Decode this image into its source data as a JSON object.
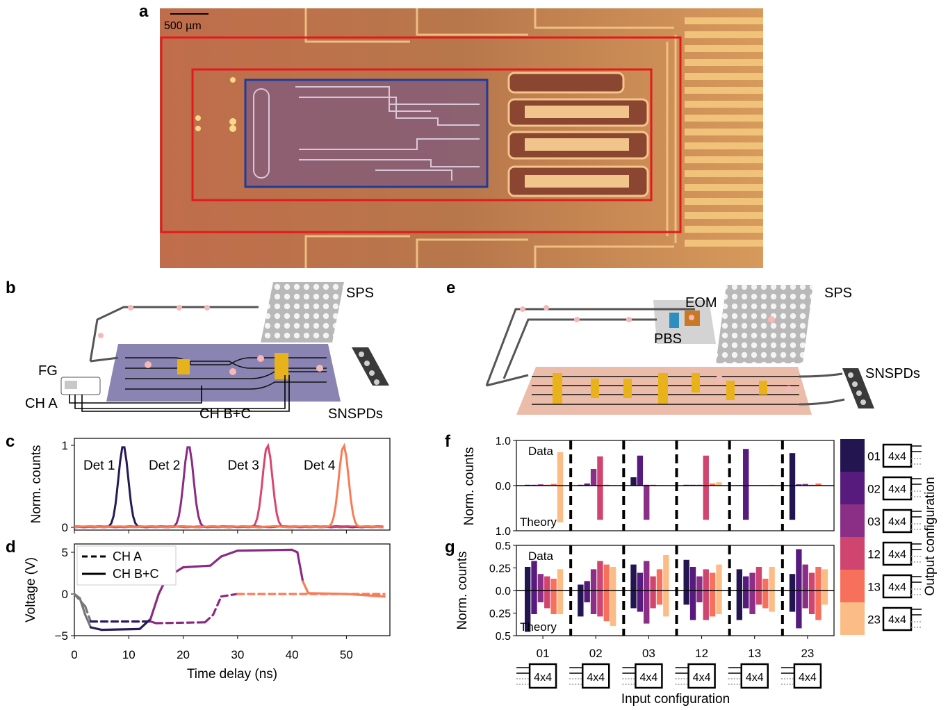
{
  "panels": {
    "a": "a",
    "b": "b",
    "c": "c",
    "d": "d",
    "e": "e",
    "f": "f",
    "g": "g"
  },
  "panel_a": {
    "scalebar": "500 µm"
  },
  "panel_b": {
    "sps": "SPS",
    "fg": "FG",
    "ch_a": "CH A",
    "ch_bc": "CH B+C",
    "snspds": "SNSPDs"
  },
  "panel_e": {
    "eom": "EOM",
    "pbs": "PBS",
    "sps": "SPS",
    "snspds": "SNSPDs"
  },
  "chart_data": [
    {
      "id": "c",
      "type": "line",
      "ylabel": "Norm. counts",
      "ylim": [
        0,
        1
      ],
      "yticks": [
        "1",
        "0"
      ],
      "series": [
        {
          "name": "Det 1",
          "peak_x": 9,
          "peak_y": 1.0,
          "color": "#261a52"
        },
        {
          "name": "Det 2",
          "peak_x": 21,
          "peak_y": 1.0,
          "color": "#8b2a82"
        },
        {
          "name": "Det 3",
          "peak_x": 35.5,
          "peak_y": 1.0,
          "color": "#d9456f"
        },
        {
          "name": "Det 4",
          "peak_x": 49.5,
          "peak_y": 1.0,
          "color": "#f97b56"
        }
      ]
    },
    {
      "id": "d",
      "type": "line",
      "xlabel": "Time delay (ns)",
      "ylabel": "Voltage (V)",
      "xlim": [
        0,
        58
      ],
      "ylim": [
        -5,
        6
      ],
      "xticks": [
        "0",
        "10",
        "20",
        "30",
        "40",
        "50"
      ],
      "yticks": [
        "5",
        "0",
        "−5"
      ],
      "legend": [
        "CH A",
        "CH B+C"
      ],
      "ch_bc": [
        [
          0,
          0
        ],
        [
          1,
          -0.5
        ],
        [
          2,
          -2.5
        ],
        [
          3,
          -4
        ],
        [
          5,
          -4.3
        ],
        [
          12,
          -4.2
        ],
        [
          14,
          -3
        ],
        [
          15.5,
          0
        ],
        [
          17,
          2
        ],
        [
          20,
          3.2
        ],
        [
          25,
          3.4
        ],
        [
          27,
          4.5
        ],
        [
          30,
          5.2
        ],
        [
          40,
          5.3
        ],
        [
          41,
          5
        ],
        [
          42,
          1.5
        ],
        [
          43,
          0.1
        ],
        [
          50,
          0
        ],
        [
          57,
          -0.3
        ]
      ],
      "ch_a": [
        [
          0,
          0
        ],
        [
          2,
          -1.5
        ],
        [
          3,
          -3.3
        ],
        [
          14,
          -3.3
        ],
        [
          15,
          -3.5
        ],
        [
          24,
          -3.4
        ],
        [
          25.5,
          -2.5
        ],
        [
          27,
          -0.3
        ],
        [
          30,
          0
        ],
        [
          57,
          0
        ]
      ]
    },
    {
      "id": "f",
      "type": "bar",
      "ylabel": "Norm. counts",
      "top_label": "Data",
      "bottom_label": "Theory",
      "yticks": [
        "1.0",
        "0.0",
        "1.0"
      ],
      "categories": [
        "01",
        "02",
        "03",
        "12",
        "13",
        "23"
      ],
      "series_names": [
        "01",
        "02",
        "03",
        "12",
        "13",
        "23"
      ],
      "data": [
        [
          0.02,
          0.02,
          0.03,
          0.02,
          0.04,
          0.8
        ],
        [
          0.02,
          0.05,
          0.4,
          0.7,
          0.02,
          0.01
        ],
        [
          0.2,
          0.72,
          0.02,
          0.02,
          0.01,
          0.01
        ],
        [
          0.02,
          0.02,
          0.02,
          0.72,
          0.05,
          0.08
        ],
        [
          0.01,
          0.88,
          0.01,
          0.01,
          0.01,
          0.02
        ],
        [
          0.78,
          0.03,
          0.04,
          0.02,
          0.05,
          0.01
        ]
      ],
      "theory": [
        [
          0,
          0,
          0,
          0,
          0,
          0.88
        ],
        [
          0,
          0,
          0,
          0.82,
          0,
          0
        ],
        [
          0,
          0,
          0.82,
          0,
          0,
          0
        ],
        [
          0,
          0,
          0,
          0.82,
          0,
          0
        ],
        [
          0,
          0.82,
          0,
          0,
          0,
          0
        ],
        [
          0.82,
          0,
          0,
          0,
          0,
          0
        ]
      ]
    },
    {
      "id": "g",
      "type": "bar",
      "xlabel": "Input configuration",
      "ylabel": "Norm. counts",
      "top_label": "Data",
      "bottom_label": "Theory",
      "yticks": [
        "0.5",
        "0.25",
        "0.0",
        "0.25",
        "0.5"
      ],
      "categories": [
        "01",
        "02",
        "03",
        "12",
        "13",
        "23"
      ],
      "data": [
        [
          0.2,
          0.25,
          0.14,
          0.12,
          0.1,
          0.18
        ],
        [
          0.05,
          0.08,
          0.18,
          0.25,
          0.22,
          0.2
        ],
        [
          0.22,
          0.15,
          0.25,
          0.12,
          0.18,
          0.3
        ],
        [
          0.26,
          0.2,
          0.12,
          0.18,
          0.15,
          0.22
        ],
        [
          0.18,
          0.12,
          0.15,
          0.2,
          0.1,
          0.2
        ],
        [
          0.14,
          0.35,
          0.22,
          0.15,
          0.2,
          0.18
        ]
      ],
      "theory": [
        [
          0.35,
          0.2,
          0.1,
          0.15,
          0.2,
          0.2
        ],
        [
          0.22,
          0.1,
          0.2,
          0.22,
          0.26,
          0.3
        ],
        [
          0.15,
          0.18,
          0.28,
          0.15,
          0.12,
          0.22
        ],
        [
          0.12,
          0.25,
          0.1,
          0.25,
          0.22,
          0.2
        ],
        [
          0.25,
          0.15,
          0.2,
          0.12,
          0.15,
          0.18
        ],
        [
          0.18,
          0.32,
          0.15,
          0.2,
          0.25,
          0.12
        ]
      ]
    }
  ],
  "colorbar": {
    "label": "Output configuration",
    "entries": [
      "01",
      "02",
      "03",
      "12",
      "13",
      "23"
    ],
    "colors": [
      "#231650",
      "#571b7e",
      "#8b2f86",
      "#d0456f",
      "#f6705c",
      "#fcbc85"
    ],
    "box_label": "4x4"
  },
  "input_boxes": {
    "label": "4x4"
  }
}
